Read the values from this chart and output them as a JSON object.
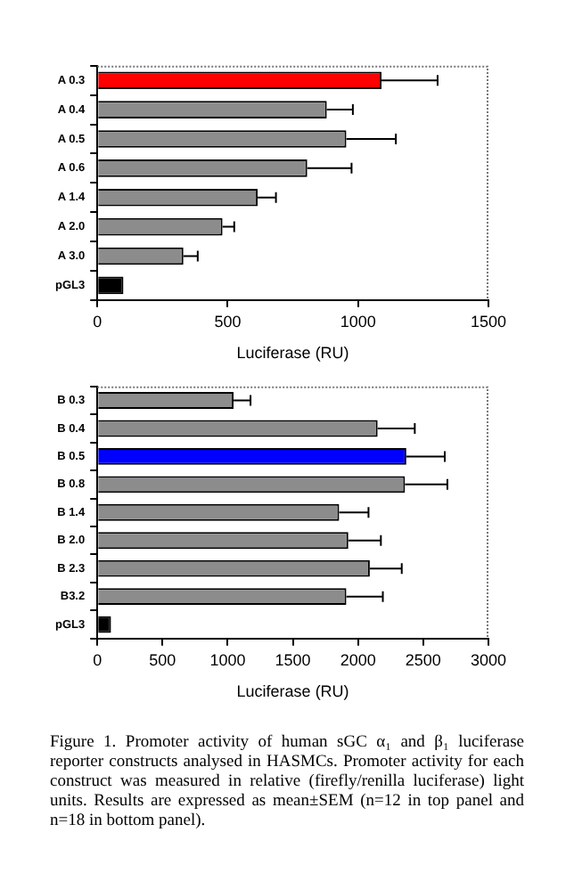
{
  "chart_data": [
    {
      "type": "bar",
      "orientation": "horizontal",
      "xlabel": "Luciferase (RU)",
      "categories": [
        "A 0.3",
        "A 0.4",
        "A 0.5",
        "A 0.6",
        "A 1.4",
        "A 2.0",
        "A 3.0",
        "pGL3"
      ],
      "values": [
        1090,
        880,
        955,
        805,
        615,
        480,
        330,
        100
      ],
      "errors": [
        215,
        100,
        190,
        170,
        70,
        45,
        55,
        null
      ],
      "colors": [
        "#ff0000",
        "#8c8c8c",
        "#8c8c8c",
        "#8c8c8c",
        "#8c8c8c",
        "#8c8c8c",
        "#8c8c8c",
        "#000000"
      ],
      "xlim": [
        0,
        1500
      ],
      "xticks": [
        0,
        500,
        1000,
        1500
      ],
      "grid": false,
      "legend": false
    },
    {
      "type": "bar",
      "orientation": "horizontal",
      "xlabel": "Luciferase (RU)",
      "categories": [
        "B 0.3",
        "B 0.4",
        "B 0.5",
        "B 0.8",
        "B 1.4",
        "B 2.0",
        "B 2.3",
        "B3.2",
        "pGL3"
      ],
      "values": [
        1045,
        2150,
        2370,
        2360,
        1855,
        1925,
        2090,
        1910,
        105
      ],
      "errors": [
        130,
        285,
        295,
        325,
        225,
        250,
        245,
        280,
        null
      ],
      "colors": [
        "#8c8c8c",
        "#8c8c8c",
        "#0000ff",
        "#8c8c8c",
        "#8c8c8c",
        "#8c8c8c",
        "#8c8c8c",
        "#8c8c8c",
        "#000000"
      ],
      "xlim": [
        0,
        3000
      ],
      "xticks": [
        0,
        500,
        1000,
        1500,
        2000,
        2500,
        3000
      ],
      "grid": false,
      "legend": false,
      "annotations": [
        "Figure 1. Promoter activity of human sGC α₁ and β₁ luciferase reporter constructs analysed in HASMCs. Promoter activity for each construct was measured in relative (firefly/renilla luciferase) light units. Results are expressed as mean±SEM (n=12 in top panel and n=18 in bottom panel)."
      ]
    }
  ]
}
